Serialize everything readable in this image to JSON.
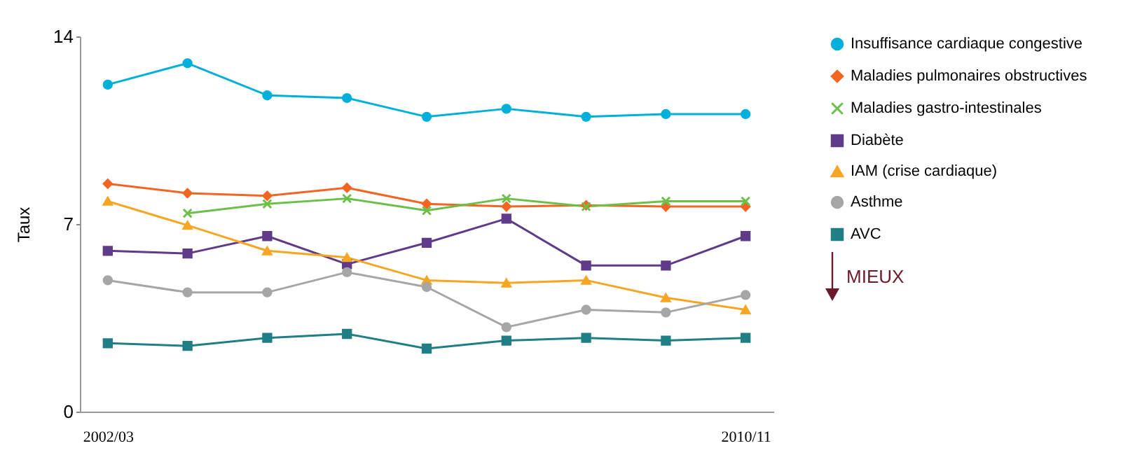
{
  "chart_data": {
    "type": "line",
    "ylabel": "Taux",
    "categories": [
      "2002/03",
      null,
      null,
      null,
      null,
      null,
      null,
      null,
      "2010/11"
    ],
    "ylim": [
      0,
      14
    ],
    "yticks": [
      0,
      7,
      14
    ],
    "grid": false,
    "legend": "right",
    "annotations": [
      "MIEUX"
    ],
    "series": [
      {
        "name": "Insuffisance cardiaque congestive",
        "color": "#00b0da",
        "marker": "circle",
        "values": [
          12.2,
          13.0,
          11.8,
          11.7,
          11.0,
          11.3,
          11.0,
          11.1,
          11.1
        ]
      },
      {
        "name": "Maladies pulmonaires obstructives",
        "color": "#f26522",
        "marker": "diamond",
        "values": [
          8.5,
          8.15,
          8.05,
          8.35,
          7.75,
          7.65,
          7.7,
          7.65,
          7.65
        ]
      },
      {
        "name": "Maladies gastro-intestinales",
        "color": "#6cc04a",
        "marker": "cross",
        "values": [
          null,
          7.4,
          7.75,
          7.95,
          7.5,
          7.95,
          7.65,
          7.85,
          7.85
        ]
      },
      {
        "name": "Diabète",
        "color": "#5f3b8a",
        "marker": "square",
        "values": [
          6.0,
          5.9,
          6.55,
          5.5,
          6.3,
          7.2,
          5.45,
          5.45,
          6.55
        ]
      },
      {
        "name": "IAM (crise cardiaque)",
        "color": "#f5a623",
        "marker": "triangle",
        "values": [
          7.85,
          6.95,
          6.0,
          5.75,
          4.9,
          4.8,
          4.9,
          4.25,
          3.8
        ]
      },
      {
        "name": "Asthme",
        "color": "#a6a6a6",
        "marker": "circle",
        "values": [
          4.9,
          4.45,
          4.45,
          5.2,
          4.65,
          3.15,
          3.8,
          3.7,
          4.35
        ]
      },
      {
        "name": "AVC",
        "color": "#1f7f85",
        "marker": "square",
        "values": [
          2.55,
          2.45,
          2.75,
          2.9,
          2.35,
          2.65,
          2.75,
          2.65,
          2.75
        ]
      }
    ]
  }
}
